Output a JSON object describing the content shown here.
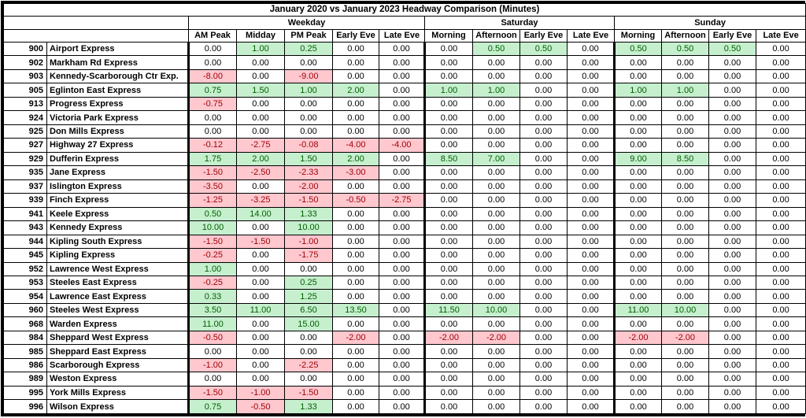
{
  "title": "January 2020 vs January 2023 Headway Comparison (Minutes)",
  "groups": [
    {
      "label": "Weekday",
      "cols": [
        "AM Peak",
        "Midday",
        "PM Peak",
        "Early Eve",
        "Late Eve"
      ]
    },
    {
      "label": "Saturday",
      "cols": [
        "Morning",
        "Afternoon",
        "Early Eve",
        "Late Eve"
      ]
    },
    {
      "label": "Sunday",
      "cols": [
        "Morning",
        "Afternoon",
        "Early Eve",
        "Late Eve"
      ]
    }
  ],
  "colors": {
    "positive_fill": "#C6EFCE",
    "positive_text": "#006100",
    "negative_fill": "#FFC7CE",
    "negative_text": "#9C0006",
    "border": "#000000"
  },
  "rows": [
    {
      "num": "900",
      "name": "Airport Express",
      "values": [
        "0.00",
        "1.00",
        "0.25",
        "0.00",
        "0.00",
        "0.00",
        "0.50",
        "0.50",
        "0.00",
        "0.50",
        "0.50",
        "0.50",
        "0.00"
      ]
    },
    {
      "num": "902",
      "name": "Markham Rd Express",
      "values": [
        "0.00",
        "0.00",
        "0.00",
        "0.00",
        "0.00",
        "0.00",
        "0.00",
        "0.00",
        "0.00",
        "0.00",
        "0.00",
        "0.00",
        "0.00"
      ]
    },
    {
      "num": "903",
      "name": "Kennedy-Scarborough Ctr Exp.",
      "values": [
        "-8.00",
        "0.00",
        "-9.00",
        "0.00",
        "0.00",
        "0.00",
        "0.00",
        "0.00",
        "0.00",
        "0.00",
        "0.00",
        "0.00",
        "0.00"
      ]
    },
    {
      "num": "905",
      "name": "Eglinton East Express",
      "values": [
        "0.75",
        "1.50",
        "1.00",
        "2.00",
        "0.00",
        "1.00",
        "1.00",
        "0.00",
        "0.00",
        "1.00",
        "1.00",
        "0.00",
        "0.00"
      ]
    },
    {
      "num": "913",
      "name": "Progress Express",
      "values": [
        "-0.75",
        "0.00",
        "0.00",
        "0.00",
        "0.00",
        "0.00",
        "0.00",
        "0.00",
        "0.00",
        "0.00",
        "0.00",
        "0.00",
        "0.00"
      ]
    },
    {
      "num": "924",
      "name": "Victoria Park Express",
      "values": [
        "0.00",
        "0.00",
        "0.00",
        "0.00",
        "0.00",
        "0.00",
        "0.00",
        "0.00",
        "0.00",
        "0.00",
        "0.00",
        "0.00",
        "0.00"
      ]
    },
    {
      "num": "925",
      "name": "Don Mills Express",
      "values": [
        "0.00",
        "0.00",
        "0.00",
        "0.00",
        "0.00",
        "0.00",
        "0.00",
        "0.00",
        "0.00",
        "0.00",
        "0.00",
        "0.00",
        "0.00"
      ]
    },
    {
      "num": "927",
      "name": "Highway 27 Express",
      "values": [
        "-0.12",
        "-2.75",
        "-0.08",
        "-4.00",
        "-4.00",
        "0.00",
        "0.00",
        "0.00",
        "0.00",
        "0.00",
        "0.00",
        "0.00",
        "0.00"
      ]
    },
    {
      "num": "929",
      "name": "Dufferin Express",
      "values": [
        "1.75",
        "2.00",
        "1.50",
        "2.00",
        "0.00",
        "8.50",
        "7.00",
        "0.00",
        "0.00",
        "9.00",
        "8.50",
        "0.00",
        "0.00"
      ]
    },
    {
      "num": "935",
      "name": "Jane Express",
      "values": [
        "-1.50",
        "-2.50",
        "-2.33",
        "-3.00",
        "0.00",
        "0.00",
        "0.00",
        "0.00",
        "0.00",
        "0.00",
        "0.00",
        "0.00",
        "0.00"
      ]
    },
    {
      "num": "937",
      "name": "Islington Express",
      "values": [
        "-3.50",
        "0.00",
        "-2.00",
        "0.00",
        "0.00",
        "0.00",
        "0.00",
        "0.00",
        "0.00",
        "0.00",
        "0.00",
        "0.00",
        "0.00"
      ]
    },
    {
      "num": "939",
      "name": "Finch Express",
      "values": [
        "-1.25",
        "-3.25",
        "-1.50",
        "-0.50",
        "-2.75",
        "0.00",
        "0.00",
        "0.00",
        "0.00",
        "0.00",
        "0.00",
        "0.00",
        "0.00"
      ]
    },
    {
      "num": "941",
      "name": "Keele Express",
      "values": [
        "0.50",
        "14.00",
        "1.33",
        "0.00",
        "0.00",
        "0.00",
        "0.00",
        "0.00",
        "0.00",
        "0.00",
        "0.00",
        "0.00",
        "0.00"
      ]
    },
    {
      "num": "943",
      "name": "Kennedy Express",
      "values": [
        "10.00",
        "0.00",
        "10.00",
        "0.00",
        "0.00",
        "0.00",
        "0.00",
        "0.00",
        "0.00",
        "0.00",
        "0.00",
        "0.00",
        "0.00"
      ]
    },
    {
      "num": "944",
      "name": "Kipling South Express",
      "values": [
        "-1.50",
        "-1.50",
        "-1.00",
        "0.00",
        "0.00",
        "0.00",
        "0.00",
        "0.00",
        "0.00",
        "0.00",
        "0.00",
        "0.00",
        "0.00"
      ]
    },
    {
      "num": "945",
      "name": "Kipling Express",
      "values": [
        "-0.25",
        "0.00",
        "-1.75",
        "0.00",
        "0.00",
        "0.00",
        "0.00",
        "0.00",
        "0.00",
        "0.00",
        "0.00",
        "0.00",
        "0.00"
      ]
    },
    {
      "num": "952",
      "name": "Lawrence West Express",
      "values": [
        "1.00",
        "0.00",
        "0.00",
        "0.00",
        "0.00",
        "0.00",
        "0.00",
        "0.00",
        "0.00",
        "0.00",
        "0.00",
        "0.00",
        "0.00"
      ]
    },
    {
      "num": "953",
      "name": "Steeles East Express",
      "values": [
        "-0.25",
        "0.00",
        "0.25",
        "0.00",
        "0.00",
        "0.00",
        "0.00",
        "0.00",
        "0.00",
        "0.00",
        "0.00",
        "0.00",
        "0.00"
      ]
    },
    {
      "num": "954",
      "name": "Lawrence East Express",
      "values": [
        "0.33",
        "0.00",
        "1.25",
        "0.00",
        "0.00",
        "0.00",
        "0.00",
        "0.00",
        "0.00",
        "0.00",
        "0.00",
        "0.00",
        "0.00"
      ]
    },
    {
      "num": "960",
      "name": "Steeles West Express",
      "values": [
        "3.50",
        "11.00",
        "6.50",
        "13.50",
        "0.00",
        "11.50",
        "10.00",
        "0.00",
        "0.00",
        "11.00",
        "10.00",
        "0.00",
        "0.00"
      ]
    },
    {
      "num": "968",
      "name": "Warden Express",
      "values": [
        "11.00",
        "0.00",
        "15.00",
        "0.00",
        "0.00",
        "0.00",
        "0.00",
        "0.00",
        "0.00",
        "0.00",
        "0.00",
        "0.00",
        "0.00"
      ]
    },
    {
      "num": "984",
      "name": "Sheppard West Express",
      "values": [
        "-0.50",
        "0.00",
        "0.00",
        "-2.00",
        "0.00",
        "-2.00",
        "-2.00",
        "0.00",
        "0.00",
        "-2.00",
        "-2.00",
        "0.00",
        "0.00"
      ]
    },
    {
      "num": "985",
      "name": "Sheppard East Express",
      "values": [
        "0.00",
        "0.00",
        "0.00",
        "0.00",
        "0.00",
        "0.00",
        "0.00",
        "0.00",
        "0.00",
        "0.00",
        "0.00",
        "0.00",
        "0.00"
      ]
    },
    {
      "num": "986",
      "name": "Scarborough Express",
      "values": [
        "-1.00",
        "0.00",
        "-2.25",
        "0.00",
        "0.00",
        "0.00",
        "0.00",
        "0.00",
        "0.00",
        "0.00",
        "0.00",
        "0.00",
        "0.00"
      ]
    },
    {
      "num": "989",
      "name": "Weston Express",
      "values": [
        "0.00",
        "0.00",
        "0.00",
        "0.00",
        "0.00",
        "0.00",
        "0.00",
        "0.00",
        "0.00",
        "0.00",
        "0.00",
        "0.00",
        "0.00"
      ]
    },
    {
      "num": "995",
      "name": "York Mills Express",
      "values": [
        "-1.50",
        "-1.00",
        "-1.50",
        "0.00",
        "0.00",
        "0.00",
        "0.00",
        "0.00",
        "0.00",
        "0.00",
        "0.00",
        "0.00",
        "0.00"
      ]
    },
    {
      "num": "996",
      "name": "Wilson Express",
      "values": [
        "0.75",
        "-0.50",
        "1.33",
        "0.00",
        "0.00",
        "0.00",
        "0.00",
        "0.00",
        "0.00",
        "0.00",
        "0.00",
        "0.00",
        "0.00"
      ]
    }
  ]
}
